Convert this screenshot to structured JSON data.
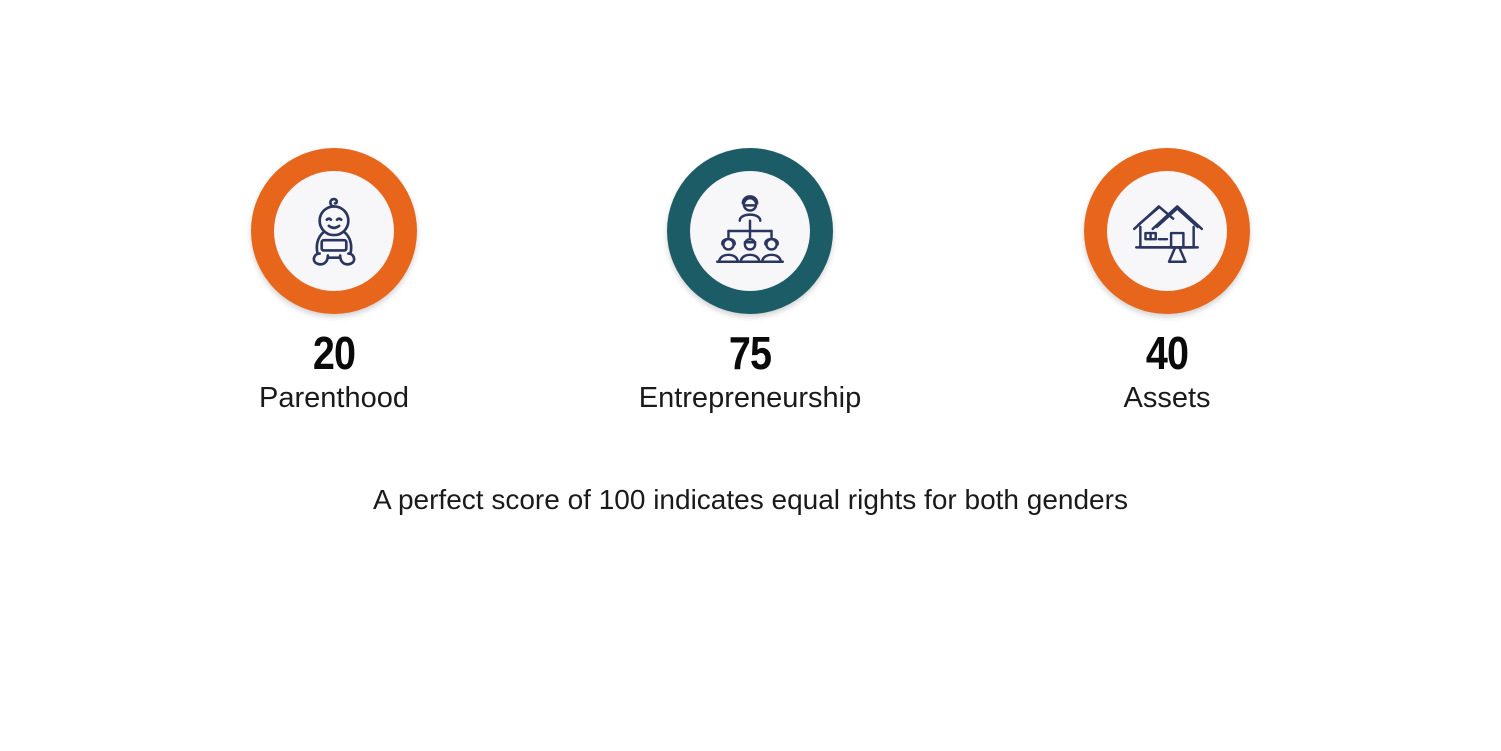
{
  "colors": {
    "orange": "#E8661C",
    "teal": "#1B5C66",
    "icon_stroke": "#2A3560"
  },
  "stats": [
    {
      "value": "20",
      "label": "Parenthood",
      "icon": "baby-icon",
      "ring_color": "#E8661C"
    },
    {
      "value": "75",
      "label": "Entrepreneurship",
      "icon": "org-chart-people-icon",
      "ring_color": "#1B5C66"
    },
    {
      "value": "40",
      "label": "Assets",
      "icon": "house-icon",
      "ring_color": "#E8661C"
    }
  ],
  "note": "A perfect score of 100 indicates equal rights for both genders"
}
